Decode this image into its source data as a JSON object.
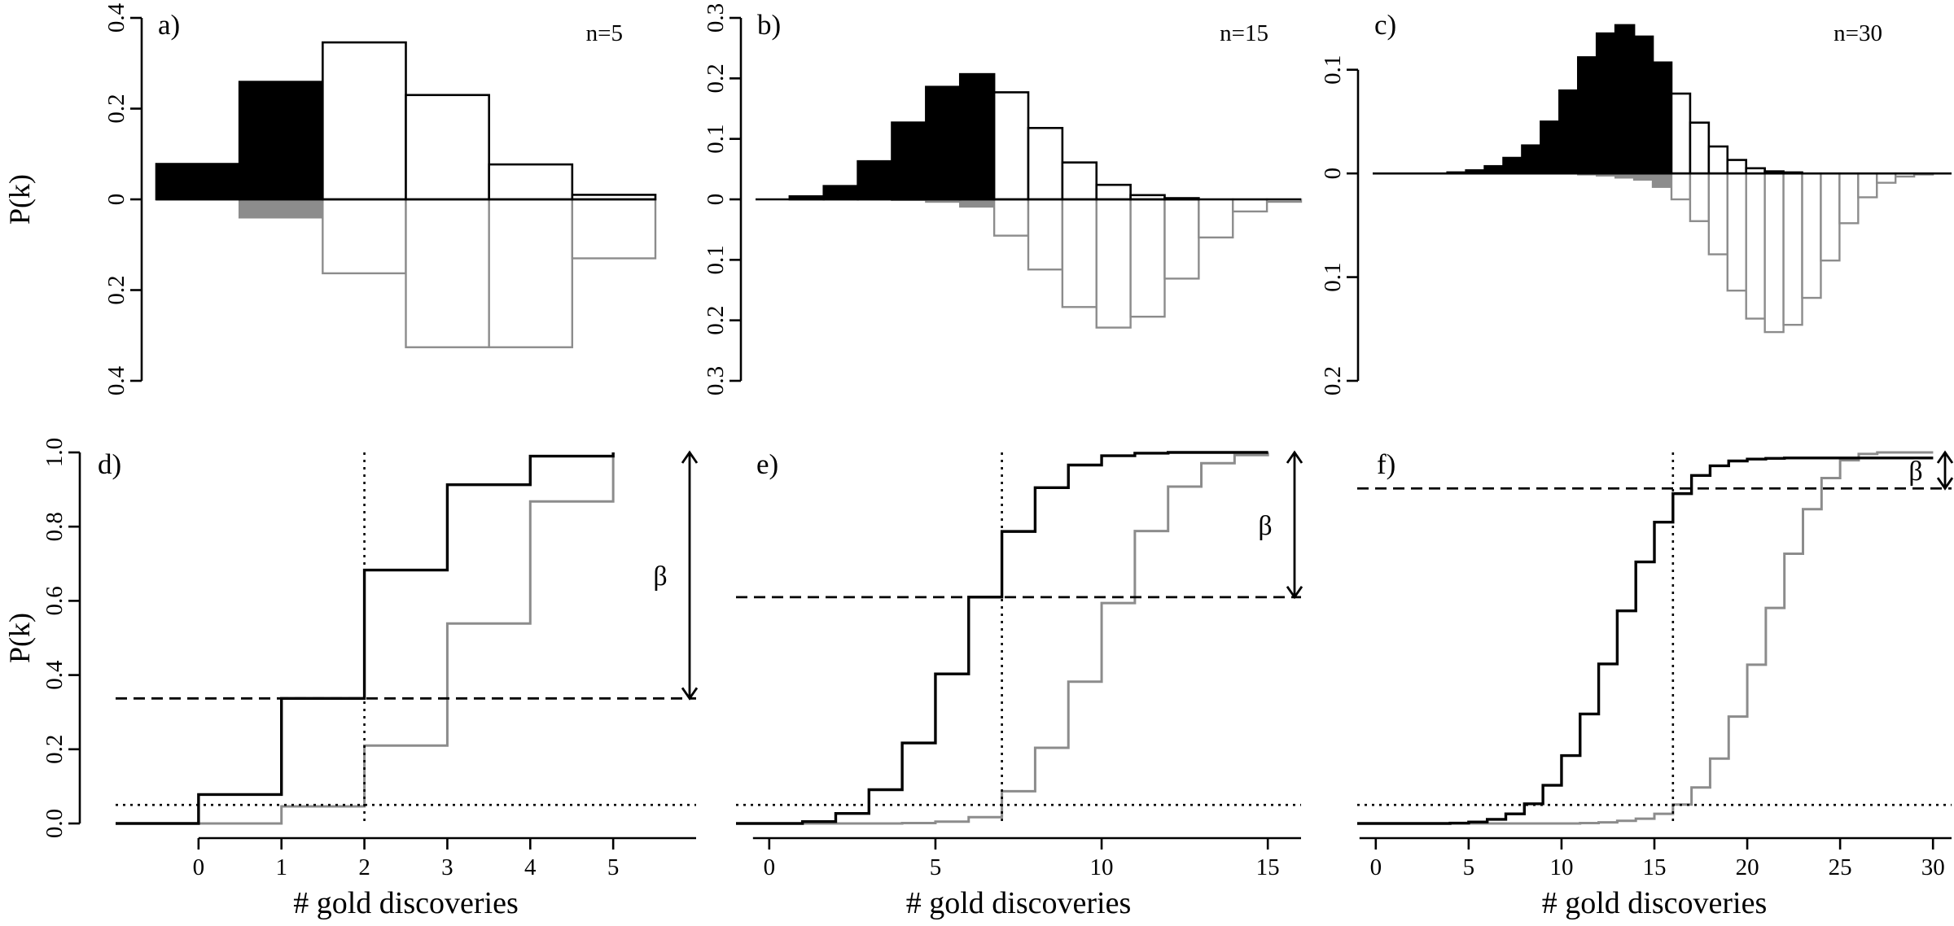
{
  "colors": {
    "null": "#000000",
    "alt": "#8c8c8c",
    "background": "#ffffff"
  },
  "chart_data": [
    {
      "id": "a",
      "type": "mirrored-bar",
      "panel_label": "a)",
      "n_label": "n=5",
      "ylabel": "P(k)",
      "ylim": [
        -0.4,
        0.4
      ],
      "yticks": [
        -0.4,
        -0.2,
        0,
        0.2,
        0.4
      ],
      "ytick_labels": [
        "0.4",
        "0.2",
        "0",
        "0.2",
        "0.4"
      ],
      "xlim": [
        -0.5,
        5.5
      ],
      "threshold": 2,
      "null_pmf": [
        0.078,
        0.259,
        0.346,
        0.23,
        0.077,
        0.01
      ],
      "alt_pmf": [
        0.0,
        0.04,
        0.163,
        0.326,
        0.326,
        0.13
      ]
    },
    {
      "id": "b",
      "type": "mirrored-bar",
      "panel_label": "b)",
      "n_label": "n=15",
      "ylabel": "",
      "ylim": [
        -0.3,
        0.3
      ],
      "yticks": [
        -0.3,
        -0.2,
        -0.1,
        0,
        0.1,
        0.2,
        0.3
      ],
      "ytick_labels": [
        "0.3",
        "0.2",
        "0.1",
        "0",
        "0.1",
        "0.2",
        "0.3"
      ],
      "xlim": [
        -0.5,
        15.5
      ],
      "threshold": 7,
      "null_pmf": [
        0.0,
        0.005,
        0.022,
        0.063,
        0.127,
        0.186,
        0.207,
        0.177,
        0.118,
        0.061,
        0.024,
        0.007,
        0.002,
        0.0,
        0.0,
        0.0
      ],
      "alt_pmf": [
        0.0,
        0.0,
        0.0,
        0.0,
        0.001,
        0.004,
        0.012,
        0.06,
        0.116,
        0.178,
        0.212,
        0.194,
        0.131,
        0.063,
        0.02,
        0.004
      ]
    },
    {
      "id": "c",
      "type": "mirrored-bar",
      "panel_label": "c)",
      "n_label": "n=30",
      "ylabel": "",
      "ylim": [
        -0.2,
        0.15
      ],
      "yticks": [
        -0.2,
        -0.1,
        0,
        0.1
      ],
      "ytick_labels": [
        "0.2",
        "0.1",
        "0",
        "0.1"
      ],
      "xlim": [
        -0.5,
        30.5
      ],
      "threshold": 16,
      "null_pmf": [
        0.0,
        0.0,
        0.0,
        0.0,
        0.001,
        0.003,
        0.007,
        0.015,
        0.027,
        0.05,
        0.08,
        0.112,
        0.135,
        0.143,
        0.132,
        0.107,
        0.077,
        0.049,
        0.026,
        0.013,
        0.005,
        0.002,
        0.001,
        0.0,
        0.0,
        0.0,
        0.0,
        0.0,
        0.0,
        0.0,
        0.0
      ],
      "alt_pmf": [
        0.0,
        0.0,
        0.0,
        0.0,
        0.0,
        0.0,
        0.0,
        0.0,
        0.0,
        0.0,
        0.0,
        0.001,
        0.002,
        0.004,
        0.006,
        0.013,
        0.025,
        0.046,
        0.078,
        0.113,
        0.14,
        0.153,
        0.146,
        0.12,
        0.084,
        0.048,
        0.023,
        0.009,
        0.003,
        0.001,
        0.0
      ]
    },
    {
      "id": "d",
      "type": "step",
      "panel_label": "d)",
      "ylabel": "P(k)",
      "xlabel": "# gold discoveries",
      "ylim": [
        0,
        1
      ],
      "yticks": [
        0,
        0.2,
        0.4,
        0.6,
        0.8,
        1.0
      ],
      "ytick_labels": [
        "0.0",
        "0.2",
        "0.4",
        "0.6",
        "0.8",
        "1.0"
      ],
      "xlim": [
        -1,
        6
      ],
      "xticks": [
        0,
        1,
        2,
        3,
        4,
        5
      ],
      "xtick_labels": [
        "0",
        "1",
        "2",
        "3",
        "4",
        "5"
      ],
      "threshold": 2,
      "alpha": 0.05,
      "beta_level": 0.337,
      "beta_label": "β",
      "null_cdf": [
        0.078,
        0.337,
        0.683,
        0.913,
        0.99,
        1.0
      ],
      "alt_cdf": [
        0.0,
        0.046,
        0.21,
        0.539,
        0.868,
        1.0
      ]
    },
    {
      "id": "e",
      "type": "step",
      "panel_label": "e)",
      "ylabel": "",
      "xlabel": "# gold discoveries",
      "ylim": [
        0,
        1
      ],
      "yticks": [],
      "ytick_labels": [],
      "xlim": [
        -1,
        16
      ],
      "xticks": [
        0,
        5,
        10,
        15
      ],
      "xtick_labels": [
        "0",
        "5",
        "10",
        "15"
      ],
      "threshold": 7,
      "alpha": 0.05,
      "beta_level": 0.61,
      "beta_label": "β",
      "null_cdf": [
        0.0,
        0.005,
        0.027,
        0.091,
        0.217,
        0.403,
        0.61,
        0.787,
        0.905,
        0.966,
        0.991,
        0.998,
        1.0,
        1.0,
        1.0,
        1.0
      ],
      "alt_cdf": [
        0.0,
        0.0,
        0.0,
        0.0,
        0.001,
        0.005,
        0.017,
        0.087,
        0.204,
        0.382,
        0.594,
        0.788,
        0.908,
        0.971,
        0.993,
        1.0
      ]
    },
    {
      "id": "f",
      "type": "step",
      "panel_label": "f)",
      "ylabel": "",
      "xlabel": "# gold discoveries",
      "ylim": [
        0,
        1
      ],
      "yticks": [],
      "ytick_labels": [],
      "xlim": [
        -1,
        31
      ],
      "xticks": [
        0,
        5,
        10,
        15,
        20,
        25,
        30
      ],
      "xtick_labels": [
        "0",
        "5",
        "10",
        "15",
        "20",
        "25",
        "30"
      ],
      "threshold": 16,
      "alpha": 0.05,
      "beta_level": 0.903,
      "beta_label": "β",
      "null_cdf": [
        0.0,
        0.0,
        0.0,
        0.0,
        0.001,
        0.004,
        0.011,
        0.026,
        0.053,
        0.103,
        0.183,
        0.295,
        0.43,
        0.573,
        0.705,
        0.812,
        0.889,
        0.938,
        0.964,
        0.977,
        0.982,
        0.984,
        0.985,
        0.985,
        0.985,
        0.985,
        0.985,
        0.985,
        0.985,
        0.985,
        0.985
      ],
      "alt_cdf": [
        0.0,
        0.0,
        0.0,
        0.0,
        0.0,
        0.0,
        0.0,
        0.0,
        0.0,
        0.0,
        0.0,
        0.001,
        0.003,
        0.007,
        0.013,
        0.026,
        0.051,
        0.097,
        0.175,
        0.288,
        0.428,
        0.581,
        0.727,
        0.847,
        0.931,
        0.979,
        0.996,
        1.0,
        1.0,
        1.0,
        1.0
      ]
    }
  ]
}
